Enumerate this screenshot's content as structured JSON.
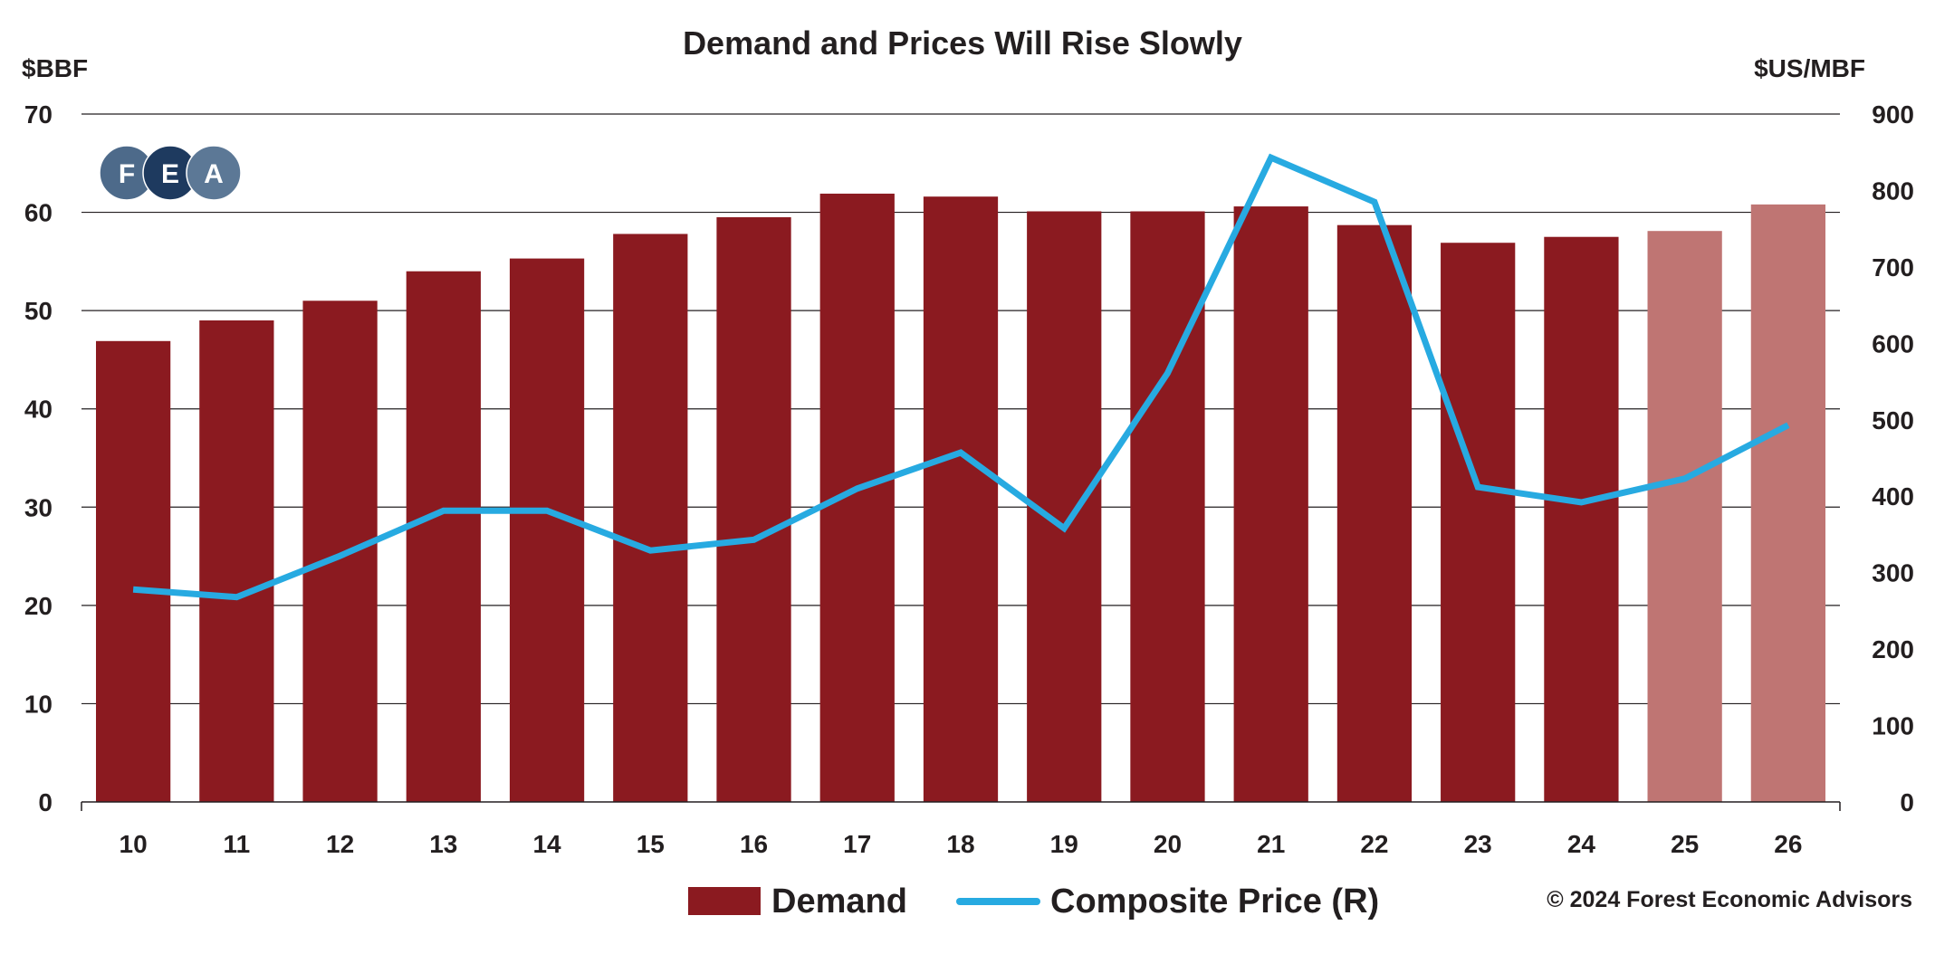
{
  "chart_data": {
    "type": "bar",
    "title": "Demand and Prices Will Rise Slowly",
    "y_left_label": "$BBF",
    "y_right_label": "$US/MBF",
    "categories": [
      "10",
      "11",
      "12",
      "13",
      "14",
      "15",
      "16",
      "17",
      "18",
      "19",
      "20",
      "21",
      "22",
      "23",
      "24",
      "25",
      "26"
    ],
    "ylim_left": [
      0,
      70
    ],
    "ylim_right": [
      0,
      900
    ],
    "y_left_ticks": [
      "0",
      "10",
      "20",
      "30",
      "40",
      "50",
      "60",
      "70"
    ],
    "y_right_ticks": [
      "0",
      "100",
      "200",
      "300",
      "400",
      "500",
      "600",
      "700",
      "800",
      "900"
    ],
    "grid": "horizontal",
    "legend_position": "bottom",
    "forecast_from_category": "25",
    "series": [
      {
        "name": "Demand",
        "type": "bar",
        "axis": "left",
        "color": "#8b1a20",
        "forecast_color": "#bf7573",
        "values": [
          46.9,
          49.0,
          51.0,
          54.0,
          55.3,
          57.8,
          59.5,
          61.9,
          61.6,
          60.1,
          60.1,
          60.6,
          58.7,
          56.9,
          57.5,
          58.1,
          60.8
        ]
      },
      {
        "name": "Composite Price (R)",
        "type": "line",
        "axis": "right",
        "color": "#27aae1",
        "values": [
          278,
          268,
          322,
          381,
          381,
          329,
          343,
          410,
          457,
          358,
          561,
          843,
          785,
          412,
          392,
          423,
          493
        ]
      }
    ]
  },
  "logo": {
    "letters": [
      "F",
      "E",
      "A"
    ],
    "colors": [
      "#4d6a8a",
      "#1e3a5f",
      "#5c7896"
    ]
  },
  "copyright": "© 2024 Forest Economic Advisors"
}
